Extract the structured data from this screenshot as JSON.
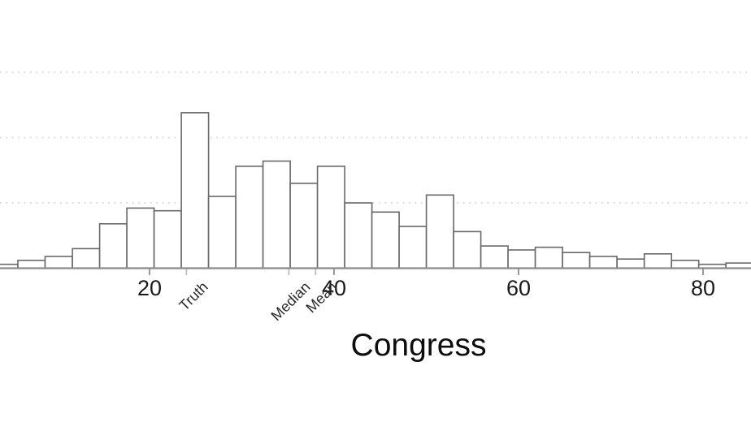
{
  "chart_data": {
    "type": "bar",
    "variant": "histogram",
    "title": "",
    "xlabel": "Congress",
    "ylabel": "",
    "x_ticks": [
      20,
      40,
      60,
      80
    ],
    "markers": [
      {
        "label": "Truth",
        "value": 24.0
      },
      {
        "label": "Median",
        "value": 35.1
      },
      {
        "label": "Mean",
        "value": 38.0
      }
    ],
    "bins": {
      "first_start": 2.78,
      "width": 2.952
    },
    "values": [
      0.3,
      0.6,
      0.9,
      1.5,
      3.4,
      4.6,
      4.4,
      11.9,
      5.5,
      7.8,
      8.2,
      6.5,
      7.8,
      5.0,
      4.3,
      3.2,
      5.6,
      2.8,
      1.7,
      1.4,
      1.6,
      1.2,
      0.9,
      0.7,
      1.1,
      0.6,
      0.3,
      0.4
    ],
    "gridline_values": [
      5,
      10,
      15
    ],
    "xlim": [
      3.79,
      85.2
    ],
    "ylim": [
      0,
      20.53
    ],
    "grid": "dotted-horizontal",
    "legend": null,
    "y_axis_labels_visible": false,
    "colors": {
      "bar_fill": "#ffffff",
      "bar_stroke": "#686868",
      "axis": "#8a8a8a",
      "tick": "#9a9a9a",
      "marker_tick": "#c2c2c2",
      "gridline": "#d8d8d8",
      "tick_text": "#1a1a1a",
      "marker_text": "#2b2b2b",
      "title_text": "#0d0d0d"
    }
  }
}
